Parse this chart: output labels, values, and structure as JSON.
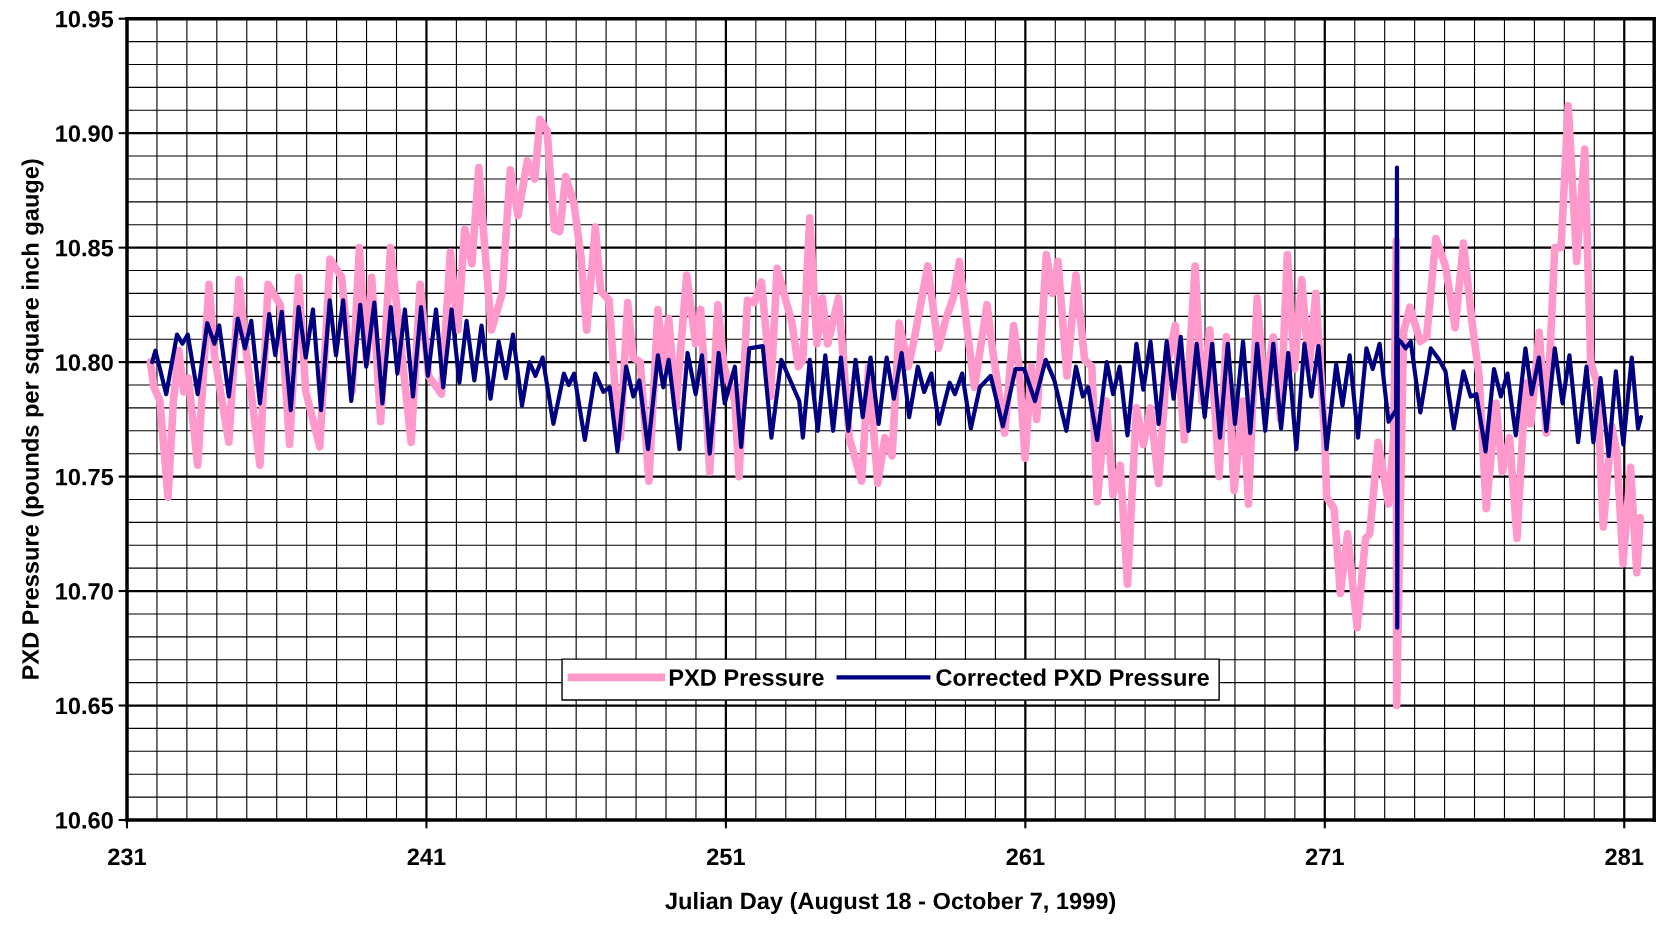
{
  "chart_data": {
    "type": "line",
    "xlabel": "Julian Day (August 18 - October 7, 1999)",
    "ylabel": "PXD Pressure (pounds per square inch gauge)",
    "xlim": [
      231,
      282
    ],
    "xticks": [
      231,
      241,
      251,
      261,
      271,
      281
    ],
    "ylim": [
      10.6,
      10.95
    ],
    "yticks": [
      {
        "value": 10.6,
        "label": "10.60"
      },
      {
        "value": 10.65,
        "label": "10.65"
      },
      {
        "value": 10.7,
        "label": "10.70"
      },
      {
        "value": 10.75,
        "label": "10.75"
      },
      {
        "value": 10.8,
        "label": "10.80"
      },
      {
        "value": 10.85,
        "label": "10.85"
      },
      {
        "value": 10.9,
        "label": "10.90"
      },
      {
        "value": 10.95,
        "label": "10.95"
      }
    ],
    "grid": true,
    "legend": "bottom",
    "marker": "none",
    "series": [
      {
        "name": "PXD Pressure",
        "color": "#ff99cc",
        "line_style": "solid",
        "x": [
          231.78,
          231.9,
          232.1,
          232.37,
          232.55,
          232.73,
          232.9,
          233.05,
          233.36,
          233.74,
          233.92,
          234.4,
          234.74,
          234.95,
          235.44,
          235.71,
          236.12,
          236.43,
          236.73,
          236.97,
          237.44,
          237.78,
          238.17,
          238.52,
          238.76,
          239.0,
          239.17,
          239.47,
          239.8,
          240.49,
          240.79,
          241.07,
          241.5,
          241.8,
          242.05,
          242.28,
          242.52,
          242.75,
          242.93,
          243.17,
          243.53,
          243.8,
          244.06,
          244.37,
          244.62,
          244.79,
          245.03,
          245.27,
          245.45,
          245.65,
          245.93,
          246.17,
          246.35,
          246.64,
          246.82,
          247.1,
          247.3,
          247.48,
          247.72,
          247.9,
          248.14,
          248.43,
          248.73,
          248.91,
          249.09,
          249.33,
          249.69,
          249.99,
          250.16,
          250.46,
          250.73,
          250.94,
          251.3,
          251.44,
          251.72,
          251.95,
          252.19,
          252.35,
          252.49,
          252.71,
          253.21,
          253.42,
          253.57,
          253.8,
          254.04,
          254.22,
          254.4,
          254.76,
          254.94,
          255.12,
          255.53,
          255.77,
          256.07,
          256.31,
          256.55,
          256.79,
          257.09,
          257.26,
          257.74,
          258.1,
          258.35,
          258.59,
          258.8,
          259.06,
          259.3,
          259.72,
          259.9,
          260.31,
          260.61,
          260.79,
          260.99,
          261.2,
          261.38,
          261.7,
          261.91,
          262.09,
          262.39,
          262.69,
          262.98,
          263.22,
          263.4,
          263.7,
          263.93,
          264.17,
          264.41,
          264.71,
          264.94,
          265.18,
          265.45,
          265.72,
          266.01,
          266.31,
          266.67,
          266.9,
          267.16,
          267.47,
          267.71,
          267.97,
          268.27,
          268.45,
          268.74,
          268.98,
          269.28,
          269.52,
          269.75,
          269.99,
          270.23,
          270.47,
          270.7,
          271.0,
          271.06,
          271.31,
          271.52,
          271.76,
          272.08,
          272.36,
          272.5,
          272.78,
          273.13,
          273.3,
          273.39,
          273.4,
          273.63,
          273.84,
          274.19,
          274.4,
          274.71,
          275.03,
          275.35,
          275.63,
          275.94,
          276.15,
          276.39,
          276.72,
          276.93,
          277.17,
          277.42,
          277.7,
          277.88,
          278.16,
          278.4,
          278.68,
          278.89,
          279.13,
          279.41,
          279.68,
          279.88,
          280.09,
          280.3,
          280.58,
          280.75,
          280.96,
          281.21,
          281.42,
          281.53
        ],
        "values": [
          10.8,
          10.789,
          10.783,
          10.741,
          10.783,
          10.805,
          10.787,
          10.793,
          10.755,
          10.834,
          10.803,
          10.765,
          10.836,
          10.808,
          10.755,
          10.834,
          10.825,
          10.764,
          10.837,
          10.787,
          10.763,
          10.845,
          10.837,
          10.787,
          10.85,
          10.8,
          10.837,
          10.774,
          10.85,
          10.765,
          10.834,
          10.794,
          10.786,
          10.848,
          10.814,
          10.858,
          10.843,
          10.885,
          10.853,
          10.814,
          10.83,
          10.884,
          10.864,
          10.888,
          10.88,
          10.906,
          10.901,
          10.858,
          10.857,
          10.881,
          10.869,
          10.845,
          10.814,
          10.859,
          10.831,
          10.827,
          10.788,
          10.767,
          10.826,
          10.802,
          10.8,
          10.748,
          10.823,
          10.798,
          10.819,
          10.78,
          10.838,
          10.808,
          10.823,
          10.752,
          10.825,
          10.798,
          10.783,
          10.75,
          10.827,
          10.826,
          10.835,
          10.812,
          10.785,
          10.841,
          10.817,
          10.798,
          10.801,
          10.863,
          10.808,
          10.828,
          10.808,
          10.828,
          10.798,
          10.767,
          10.748,
          10.798,
          10.747,
          10.767,
          10.759,
          10.817,
          10.798,
          10.808,
          10.842,
          10.806,
          10.819,
          10.828,
          10.844,
          10.814,
          10.789,
          10.825,
          10.806,
          10.769,
          10.816,
          10.798,
          10.758,
          10.798,
          10.775,
          10.847,
          10.83,
          10.844,
          10.794,
          10.838,
          10.801,
          10.798,
          10.739,
          10.783,
          10.742,
          10.755,
          10.703,
          10.78,
          10.764,
          10.78,
          10.747,
          10.798,
          10.816,
          10.766,
          10.842,
          10.783,
          10.814,
          10.75,
          10.811,
          10.744,
          10.783,
          10.738,
          10.828,
          10.786,
          10.811,
          10.775,
          10.847,
          10.797,
          10.836,
          10.797,
          10.83,
          10.767,
          10.741,
          10.736,
          10.699,
          10.725,
          10.684,
          10.723,
          10.725,
          10.765,
          10.738,
          10.767,
          10.853,
          10.65,
          10.813,
          10.824,
          10.809,
          10.811,
          10.854,
          10.842,
          10.815,
          10.852,
          10.815,
          10.794,
          10.736,
          10.782,
          10.752,
          10.767,
          10.723,
          10.791,
          10.773,
          10.813,
          10.769,
          10.85,
          10.85,
          10.912,
          10.844,
          10.893,
          10.8,
          10.791,
          10.728,
          10.772,
          10.761,
          10.712,
          10.754,
          10.708,
          10.732
        ]
      },
      {
        "name": "Corrected PXD Pressure",
        "color": "#000080",
        "line_style": "solid",
        "x": [
          231.84,
          231.95,
          232.31,
          232.67,
          232.85,
          233.03,
          233.36,
          233.68,
          233.92,
          234.08,
          234.4,
          234.7,
          234.94,
          235.15,
          235.44,
          235.75,
          235.95,
          236.17,
          236.47,
          236.73,
          236.97,
          237.21,
          237.48,
          237.77,
          237.98,
          238.22,
          238.49,
          238.79,
          238.99,
          239.26,
          239.53,
          239.81,
          240.03,
          240.28,
          240.55,
          240.82,
          241.05,
          241.32,
          241.56,
          241.84,
          242.1,
          242.34,
          242.6,
          242.84,
          243.14,
          243.41,
          243.65,
          243.89,
          244.19,
          244.44,
          244.64,
          244.88,
          245.24,
          245.59,
          245.75,
          245.93,
          246.29,
          246.64,
          246.91,
          247.12,
          247.38,
          247.67,
          247.91,
          248.11,
          248.4,
          248.73,
          248.91,
          249.09,
          249.45,
          249.72,
          249.99,
          250.2,
          250.46,
          250.76,
          250.96,
          251.3,
          251.51,
          251.78,
          252.23,
          252.52,
          252.85,
          253.45,
          253.57,
          253.8,
          254.07,
          254.32,
          254.58,
          254.84,
          255.09,
          255.33,
          255.57,
          255.83,
          256.1,
          256.37,
          256.61,
          256.87,
          257.12,
          257.41,
          257.62,
          257.86,
          258.12,
          258.47,
          258.65,
          258.89,
          259.18,
          259.48,
          259.84,
          260.25,
          260.67,
          260.96,
          261.32,
          261.68,
          261.97,
          262.37,
          262.69,
          262.92,
          263.1,
          263.4,
          263.72,
          263.93,
          264.15,
          264.41,
          264.71,
          264.94,
          265.18,
          265.45,
          265.72,
          265.95,
          266.19,
          266.45,
          266.72,
          266.99,
          267.24,
          267.5,
          267.76,
          268.0,
          268.27,
          268.51,
          268.74,
          269.01,
          269.28,
          269.54,
          269.78,
          270.05,
          270.32,
          270.55,
          270.79,
          271.06,
          271.38,
          271.59,
          271.83,
          272.11,
          272.39,
          272.6,
          272.83,
          273.13,
          273.38,
          273.41,
          273.42,
          273.44,
          273.53,
          273.7,
          273.87,
          274.19,
          274.54,
          274.82,
          275.03,
          275.31,
          275.63,
          275.87,
          276.06,
          276.37,
          276.65,
          276.88,
          277.1,
          277.38,
          277.7,
          277.91,
          278.15,
          278.4,
          278.68,
          278.94,
          279.17,
          279.46,
          279.74,
          279.97,
          280.21,
          280.48,
          280.72,
          280.97,
          281.25,
          281.46,
          281.56
        ],
        "values": [
          10.8,
          10.805,
          10.786,
          10.812,
          10.808,
          10.812,
          10.786,
          10.817,
          10.808,
          10.816,
          10.785,
          10.819,
          10.806,
          10.818,
          10.782,
          10.821,
          10.803,
          10.822,
          10.779,
          10.824,
          10.802,
          10.823,
          10.779,
          10.827,
          10.803,
          10.827,
          10.783,
          10.825,
          10.798,
          10.826,
          10.782,
          10.824,
          10.795,
          10.823,
          10.785,
          10.824,
          10.794,
          10.823,
          10.789,
          10.823,
          10.791,
          10.818,
          10.792,
          10.816,
          10.784,
          10.809,
          10.793,
          10.812,
          10.781,
          10.8,
          10.794,
          10.802,
          10.773,
          10.795,
          10.79,
          10.795,
          10.766,
          10.795,
          10.787,
          10.789,
          10.761,
          10.798,
          10.785,
          10.792,
          10.762,
          10.803,
          10.789,
          10.801,
          10.762,
          10.804,
          10.786,
          10.803,
          10.76,
          10.804,
          10.782,
          10.798,
          10.763,
          10.806,
          10.807,
          10.767,
          10.801,
          10.783,
          10.767,
          10.801,
          10.77,
          10.803,
          10.77,
          10.802,
          10.77,
          10.801,
          10.776,
          10.802,
          10.773,
          10.802,
          10.784,
          10.804,
          10.776,
          10.798,
          10.787,
          10.795,
          10.773,
          10.791,
          10.786,
          10.795,
          10.771,
          10.789,
          10.794,
          10.772,
          10.797,
          10.797,
          10.783,
          10.801,
          10.792,
          10.77,
          10.798,
          10.785,
          10.789,
          10.766,
          10.8,
          10.786,
          10.798,
          10.768,
          10.808,
          10.788,
          10.809,
          10.773,
          10.809,
          10.784,
          10.811,
          10.77,
          10.808,
          10.776,
          10.808,
          10.767,
          10.808,
          10.773,
          10.809,
          10.769,
          10.808,
          10.77,
          10.808,
          10.771,
          10.804,
          10.762,
          10.808,
          10.785,
          10.807,
          10.762,
          10.799,
          10.781,
          10.803,
          10.767,
          10.806,
          10.797,
          10.808,
          10.774,
          10.779,
          10.885,
          10.684,
          10.81,
          10.809,
          10.806,
          10.809,
          10.778,
          10.806,
          10.801,
          10.796,
          10.771,
          10.796,
          10.785,
          10.786,
          10.761,
          10.797,
          10.785,
          10.795,
          10.768,
          10.806,
          10.786,
          10.802,
          10.77,
          10.806,
          10.782,
          10.803,
          10.765,
          10.798,
          10.765,
          10.793,
          10.759,
          10.796,
          10.764,
          10.802,
          10.771,
          10.776
        ]
      }
    ]
  }
}
